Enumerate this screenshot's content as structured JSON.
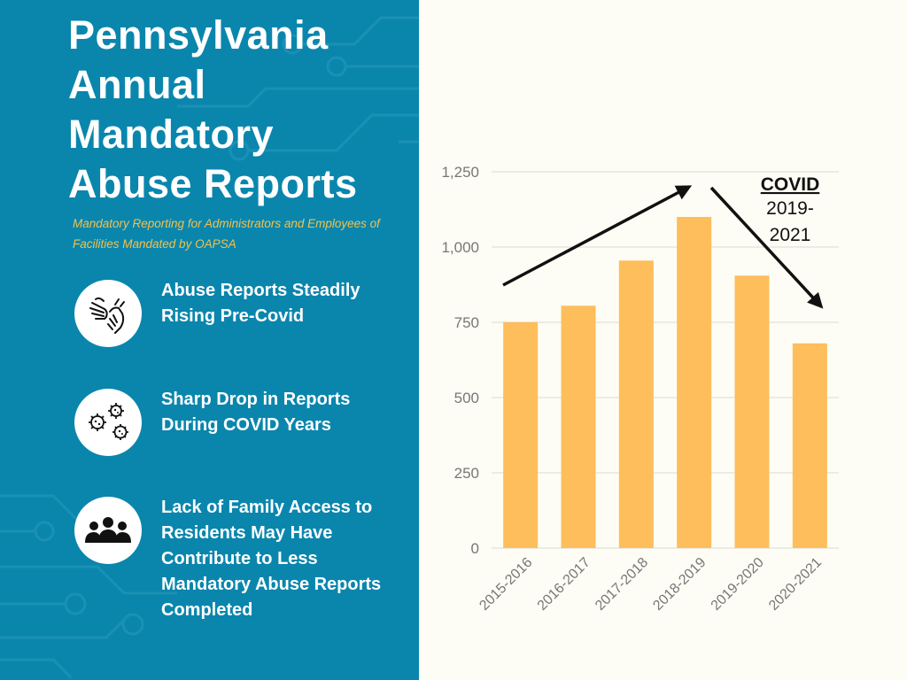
{
  "title": "Pennsylvania Annual Mandatory Abuse Reports",
  "subtitle": "Mandatory Reporting for Administrators and Employees of Facilities Mandated by OAPSA",
  "features": [
    {
      "icon": "sign-language-hands-icon",
      "text": "Abuse Reports Steadily Rising Pre-Covid"
    },
    {
      "icon": "virus-icon",
      "text": "Sharp Drop in Reports During COVID Years"
    },
    {
      "icon": "family-group-icon",
      "text": "Lack of Family Access to Residents May Have Contribute to Less Mandatory Abuse Reports Completed"
    }
  ],
  "colors": {
    "panel": "#0a86ad",
    "bar": "#fdbe5b",
    "subtitle": "#f2c14e"
  },
  "chart_data": {
    "type": "bar",
    "categories": [
      "2015-2016",
      "2016-2017",
      "2017-2018",
      "2018-2019",
      "2019-2020",
      "2020-2021"
    ],
    "values": [
      750,
      805,
      955,
      1100,
      905,
      680
    ],
    "ylim": [
      0,
      1250
    ],
    "yticks": [
      "0",
      "250",
      "500",
      "750",
      "1,000",
      "1,250"
    ],
    "grid": true,
    "annotation": {
      "title": "COVID",
      "line1": "2019-",
      "line2": "2021"
    }
  }
}
